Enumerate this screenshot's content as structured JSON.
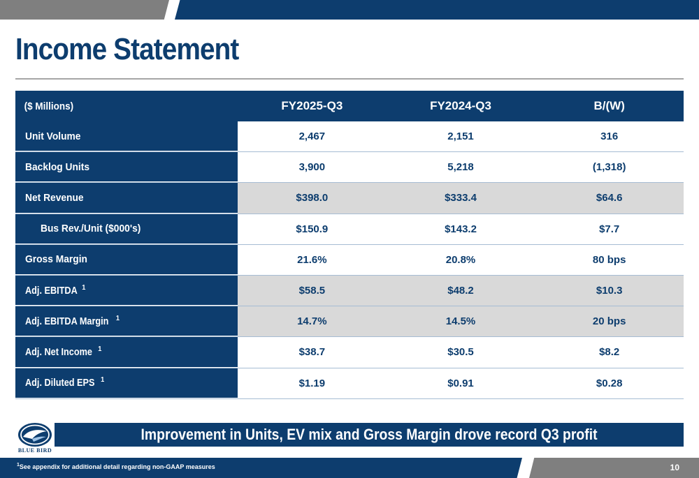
{
  "header": {
    "title": "Income Statement"
  },
  "colors": {
    "navy": "#0d3d6e",
    "gray": "#7f7f7f",
    "shade": "#d9d9d9"
  },
  "table": {
    "headers": [
      "($ Millions)",
      "FY2025-Q3",
      "FY2024-Q3",
      "B/(W)"
    ],
    "rows": [
      {
        "label": "Unit Volume",
        "sup": "",
        "values": [
          "2,467",
          "2,151",
          "316"
        ]
      },
      {
        "label": "Backlog Units",
        "sup": "",
        "values": [
          "3,900",
          "5,218",
          "(1,318)"
        ]
      },
      {
        "label": "Net Revenue",
        "sup": "",
        "values": [
          "$398.0",
          "$333.4",
          "$64.6"
        ]
      },
      {
        "label": "Bus Rev./Unit ($000's)",
        "sup": "",
        "values": [
          "$150.9",
          "$143.2",
          "$7.7"
        ]
      },
      {
        "label": "Gross Margin",
        "sup": "",
        "values": [
          "21.6%",
          "20.8%",
          "80 bps"
        ]
      },
      {
        "label": "Adj. EBITDA",
        "sup": "1",
        "values": [
          "$58.5",
          "$48.2",
          "$10.3"
        ]
      },
      {
        "label": "Adj. EBITDA Margin",
        "sup": "1",
        "values": [
          "14.7%",
          "14.5%",
          "20 bps"
        ]
      },
      {
        "label": "Adj. Net Income",
        "sup": "1",
        "values": [
          "$38.7",
          "$30.5",
          "$8.2"
        ]
      },
      {
        "label": "Adj. Diluted EPS",
        "sup": "1",
        "values": [
          "$1.19",
          "$0.91",
          "$0.28"
        ]
      }
    ]
  },
  "logo": {
    "text": "BLUE BIRD",
    "icon": "blue-bird-logo-icon"
  },
  "banner": {
    "text": "Improvement in Units, EV mix and Gross Margin drove record Q3 profit"
  },
  "footer": {
    "footnote_sup": "1",
    "footnote": "See appendix for additional detail regarding non-GAAP measures",
    "page_number": "10"
  }
}
